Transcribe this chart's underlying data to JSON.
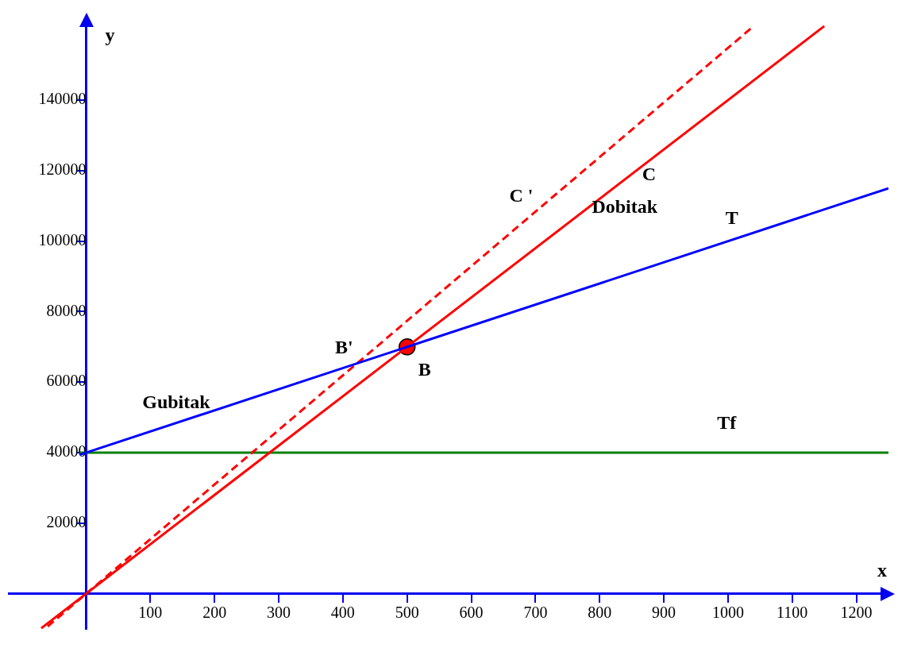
{
  "chart_data": {
    "type": "line",
    "xlabel": "x",
    "ylabel": "y",
    "xlim": [
      -120,
      1250
    ],
    "ylim": [
      -10000,
      163000
    ],
    "xticks": [
      100,
      200,
      300,
      400,
      500,
      600,
      700,
      800,
      900,
      1000,
      1100,
      1200
    ],
    "yticks": [
      20000,
      40000,
      60000,
      80000,
      100000,
      120000,
      140000
    ],
    "grid": false,
    "legend": false,
    "series": [
      {
        "name": "T",
        "color": "#0000ff",
        "x": [
          -10,
          1250
        ],
        "values": [
          39400,
          115000
        ]
      },
      {
        "name": "C",
        "color": "#ff0000",
        "x": [
          -70,
          1150
        ],
        "values": [
          -9800,
          161000
        ]
      },
      {
        "name": "C '",
        "color": "#ff0000",
        "x": [
          -60,
          1040
        ],
        "values": [
          -9300,
          161000
        ],
        "line_style": "dashed"
      },
      {
        "name": "Tf",
        "color": "#008000",
        "x": [
          -10,
          1250
        ],
        "values": [
          40000,
          40000
        ]
      },
      {
        "type": "scatter",
        "color": "#ff0000",
        "x": [
          500
        ],
        "values": [
          70000
        ],
        "marker": "circle"
      }
    ],
    "annotations": [
      "Dobitak",
      "Gubitak",
      {
        "text": "B'",
        "x": 419,
        "y": 65100
      },
      {
        "text": "B",
        "x": 500,
        "y": 70000
      }
    ]
  }
}
